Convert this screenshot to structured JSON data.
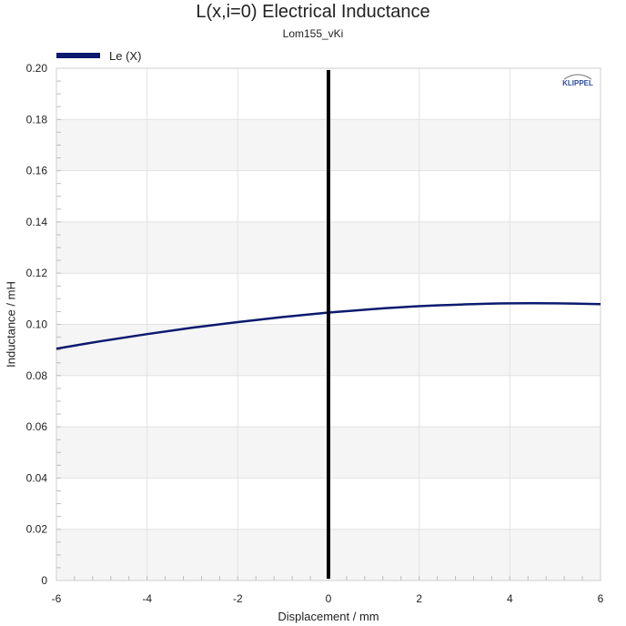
{
  "chart_data": {
    "type": "line",
    "title": "L(x,i=0) Electrical Inductance",
    "subtitle": "Lom155_vKi",
    "xlabel": "Displacement / mm",
    "ylabel": "Inductance / mH",
    "xlim": [
      -6,
      6
    ],
    "ylim": [
      0,
      0.2
    ],
    "xticks": [
      "-6",
      "-4",
      "-2",
      "0",
      "2",
      "4",
      "6"
    ],
    "yticks": [
      "0",
      "0.02",
      "0.04",
      "0.06",
      "0.08",
      "0.10",
      "0.12",
      "0.14",
      "0.16",
      "0.18",
      "0.20"
    ],
    "grid": true,
    "legend_position": "top-left",
    "series": [
      {
        "name": "Le (X)",
        "color": "#0b1a6e",
        "x": [
          -6,
          -5,
          -4,
          -3,
          -2,
          -1,
          0,
          1,
          2,
          3,
          4,
          5,
          6
        ],
        "y": [
          0.0905,
          0.0935,
          0.0962,
          0.0987,
          0.1009,
          0.1029,
          0.1046,
          0.106,
          0.1071,
          0.1078,
          0.1082,
          0.1082,
          0.1079
        ]
      }
    ],
    "marker_line": {
      "x": 0,
      "color": "#000000"
    },
    "logo_text": "KLIPPEL"
  }
}
